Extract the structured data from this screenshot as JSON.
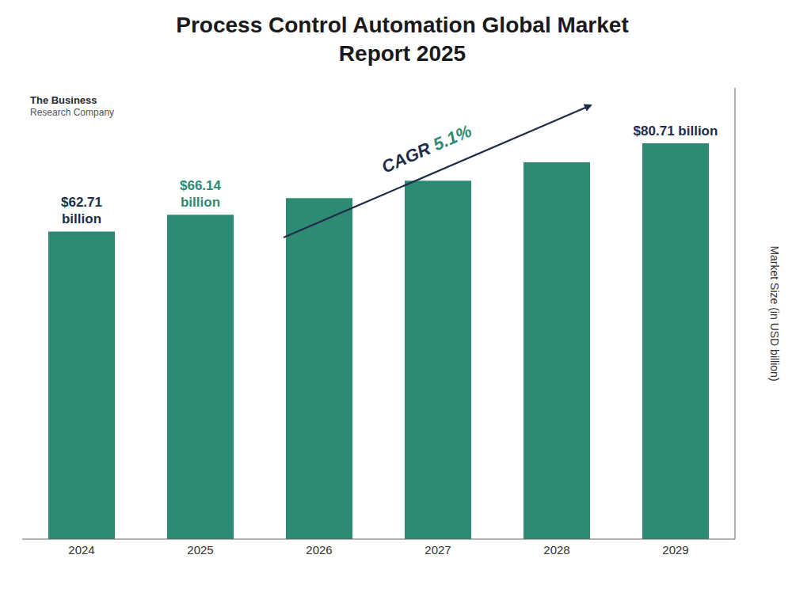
{
  "chart_data": {
    "type": "bar",
    "title": "Process Control Automation Global Market\nReport 2025",
    "categories": [
      "2024",
      "2025",
      "2026",
      "2027",
      "2028",
      "2029"
    ],
    "values": [
      62.71,
      66.14,
      69.52,
      73.07,
      76.81,
      80.71
    ],
    "color": "#2d8b74",
    "ylim": [
      0,
      92
    ],
    "y_label": "Market Size (in USD billion)",
    "tick_labels": "x",
    "grid": false,
    "annotations": [
      {
        "kind": "bar",
        "category": "2024",
        "text": "$62.71\nbillion",
        "color": "#1e2d4a"
      },
      {
        "kind": "bar",
        "category": "2025",
        "text": "$66.14\nbillion",
        "color": "#2d8b74"
      },
      {
        "kind": "bar",
        "category": "2029",
        "text": "$80.71 billion",
        "color": "#1e2d4a"
      },
      {
        "kind": "cagr",
        "text": "CAGR ",
        "color": "#1e2d4a"
      },
      {
        "kind": "cagr",
        "text": "5.1%",
        "color": "#2d8b74"
      },
      {
        "kind": "logo",
        "text": "The Business"
      },
      {
        "kind": "logo",
        "text": "Research Company"
      }
    ]
  }
}
